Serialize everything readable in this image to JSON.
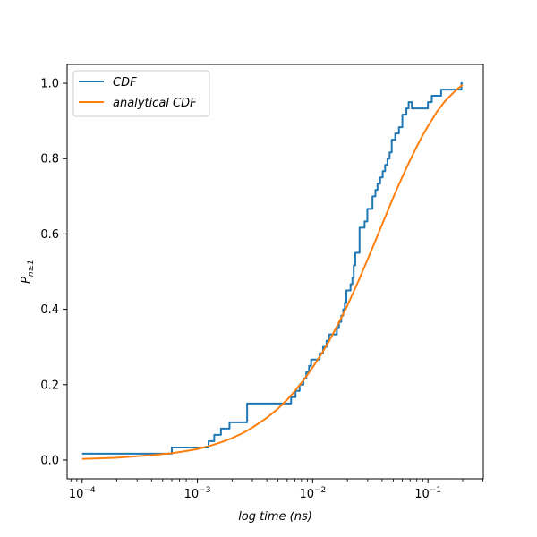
{
  "chart_data": {
    "type": "line",
    "xscale": "log",
    "xlabel": "log time (ns)",
    "ylabel": "P_{n≥1}",
    "xlim": [
      7.41e-05,
      0.302
    ],
    "ylim": [
      -0.05,
      1.05
    ],
    "xticks": [
      {
        "value": 0.0001,
        "base": "10",
        "exp": "−4"
      },
      {
        "value": 0.001,
        "base": "10",
        "exp": "−3"
      },
      {
        "value": 0.01,
        "base": "10",
        "exp": "−2"
      },
      {
        "value": 0.1,
        "base": "10",
        "exp": "−1"
      }
    ],
    "yticks": [
      {
        "value": 0.0,
        "label": "0.0"
      },
      {
        "value": 0.2,
        "label": "0.2"
      },
      {
        "value": 0.4,
        "label": "0.4"
      },
      {
        "value": 0.6,
        "label": "0.6"
      },
      {
        "value": 0.8,
        "label": "0.8"
      },
      {
        "value": 1.0,
        "label": "1.0"
      }
    ],
    "grid": false,
    "legend_position": "top-left",
    "series": [
      {
        "name": "CDF",
        "color": "#1f77b4",
        "style": "step",
        "points": [
          [
            0.0001,
            0.0167
          ],
          [
            0.0006,
            0.0167
          ],
          [
            0.0006,
            0.0333
          ],
          [
            0.00125,
            0.0333
          ],
          [
            0.00125,
            0.05
          ],
          [
            0.0014,
            0.05
          ],
          [
            0.0014,
            0.0667
          ],
          [
            0.0016,
            0.0667
          ],
          [
            0.0016,
            0.0833
          ],
          [
            0.0019,
            0.0833
          ],
          [
            0.0019,
            0.1
          ],
          [
            0.0027,
            0.1
          ],
          [
            0.0027,
            0.15
          ],
          [
            0.0065,
            0.15
          ],
          [
            0.0065,
            0.1667
          ],
          [
            0.0071,
            0.1667
          ],
          [
            0.0071,
            0.1833
          ],
          [
            0.0077,
            0.1833
          ],
          [
            0.0077,
            0.2
          ],
          [
            0.0083,
            0.2
          ],
          [
            0.0083,
            0.2167
          ],
          [
            0.0088,
            0.2167
          ],
          [
            0.0088,
            0.2333
          ],
          [
            0.0093,
            0.2333
          ],
          [
            0.0093,
            0.25
          ],
          [
            0.0097,
            0.25
          ],
          [
            0.0097,
            0.2667
          ],
          [
            0.0115,
            0.2667
          ],
          [
            0.0115,
            0.2833
          ],
          [
            0.0123,
            0.2833
          ],
          [
            0.0123,
            0.3
          ],
          [
            0.0132,
            0.3
          ],
          [
            0.0132,
            0.3167
          ],
          [
            0.0139,
            0.3167
          ],
          [
            0.0139,
            0.3333
          ],
          [
            0.0162,
            0.3333
          ],
          [
            0.0162,
            0.35
          ],
          [
            0.0169,
            0.35
          ],
          [
            0.0169,
            0.3667
          ],
          [
            0.0177,
            0.3667
          ],
          [
            0.0177,
            0.3833
          ],
          [
            0.0184,
            0.3833
          ],
          [
            0.0184,
            0.4
          ],
          [
            0.019,
            0.4
          ],
          [
            0.019,
            0.4167
          ],
          [
            0.0196,
            0.4167
          ],
          [
            0.0196,
            0.45
          ],
          [
            0.0213,
            0.45
          ],
          [
            0.0213,
            0.4667
          ],
          [
            0.0221,
            0.4667
          ],
          [
            0.0221,
            0.4833
          ],
          [
            0.0227,
            0.4833
          ],
          [
            0.0227,
            0.5167
          ],
          [
            0.0234,
            0.5167
          ],
          [
            0.0234,
            0.55
          ],
          [
            0.0255,
            0.55
          ],
          [
            0.0255,
            0.6167
          ],
          [
            0.0282,
            0.6167
          ],
          [
            0.0282,
            0.6333
          ],
          [
            0.0298,
            0.6333
          ],
          [
            0.0298,
            0.6667
          ],
          [
            0.033,
            0.6667
          ],
          [
            0.033,
            0.7
          ],
          [
            0.035,
            0.7
          ],
          [
            0.035,
            0.7167
          ],
          [
            0.0365,
            0.7167
          ],
          [
            0.0365,
            0.7333
          ],
          [
            0.0385,
            0.7333
          ],
          [
            0.0385,
            0.75
          ],
          [
            0.0405,
            0.75
          ],
          [
            0.0405,
            0.7667
          ],
          [
            0.0425,
            0.7667
          ],
          [
            0.0425,
            0.7833
          ],
          [
            0.0445,
            0.7833
          ],
          [
            0.0445,
            0.8
          ],
          [
            0.0465,
            0.8
          ],
          [
            0.0465,
            0.8167
          ],
          [
            0.0485,
            0.8167
          ],
          [
            0.0485,
            0.85
          ],
          [
            0.052,
            0.85
          ],
          [
            0.052,
            0.8667
          ],
          [
            0.056,
            0.8667
          ],
          [
            0.056,
            0.8833
          ],
          [
            0.06,
            0.8833
          ],
          [
            0.06,
            0.9167
          ],
          [
            0.065,
            0.9167
          ],
          [
            0.065,
            0.9333
          ],
          [
            0.068,
            0.9333
          ],
          [
            0.068,
            0.95
          ],
          [
            0.0725,
            0.95
          ],
          [
            0.0725,
            0.9333
          ],
          [
            0.1,
            0.9333
          ],
          [
            0.1,
            0.95
          ],
          [
            0.108,
            0.95
          ],
          [
            0.108,
            0.9667
          ],
          [
            0.13,
            0.9667
          ],
          [
            0.13,
            0.9833
          ],
          [
            0.195,
            0.9833
          ],
          [
            0.195,
            1.0
          ],
          [
            0.2,
            1.0
          ]
        ]
      },
      {
        "name": "analytical CDF",
        "color": "#ff7f0e",
        "style": "line",
        "points": [
          [
            0.0001,
            0.003
          ],
          [
            0.0002,
            0.006
          ],
          [
            0.0004,
            0.013
          ],
          [
            0.0006,
            0.018
          ],
          [
            0.0008,
            0.024
          ],
          [
            0.001,
            0.029
          ],
          [
            0.0013,
            0.038
          ],
          [
            0.0016,
            0.047
          ],
          [
            0.002,
            0.058
          ],
          [
            0.0025,
            0.072
          ],
          [
            0.003,
            0.086
          ],
          [
            0.004,
            0.112
          ],
          [
            0.005,
            0.136
          ],
          [
            0.006,
            0.16
          ],
          [
            0.007,
            0.183
          ],
          [
            0.008,
            0.205
          ],
          [
            0.009,
            0.226
          ],
          [
            0.01,
            0.246
          ],
          [
            0.012,
            0.283
          ],
          [
            0.014,
            0.318
          ],
          [
            0.016,
            0.351
          ],
          [
            0.018,
            0.382
          ],
          [
            0.02,
            0.41
          ],
          [
            0.025,
            0.476
          ],
          [
            0.03,
            0.533
          ],
          [
            0.035,
            0.582
          ],
          [
            0.04,
            0.625
          ],
          [
            0.05,
            0.697
          ],
          [
            0.06,
            0.752
          ],
          [
            0.07,
            0.796
          ],
          [
            0.08,
            0.832
          ],
          [
            0.09,
            0.862
          ],
          [
            0.1,
            0.886
          ],
          [
            0.12,
            0.925
          ],
          [
            0.14,
            0.952
          ],
          [
            0.16,
            0.97
          ],
          [
            0.18,
            0.985
          ],
          [
            0.2,
            0.996
          ]
        ]
      }
    ]
  }
}
